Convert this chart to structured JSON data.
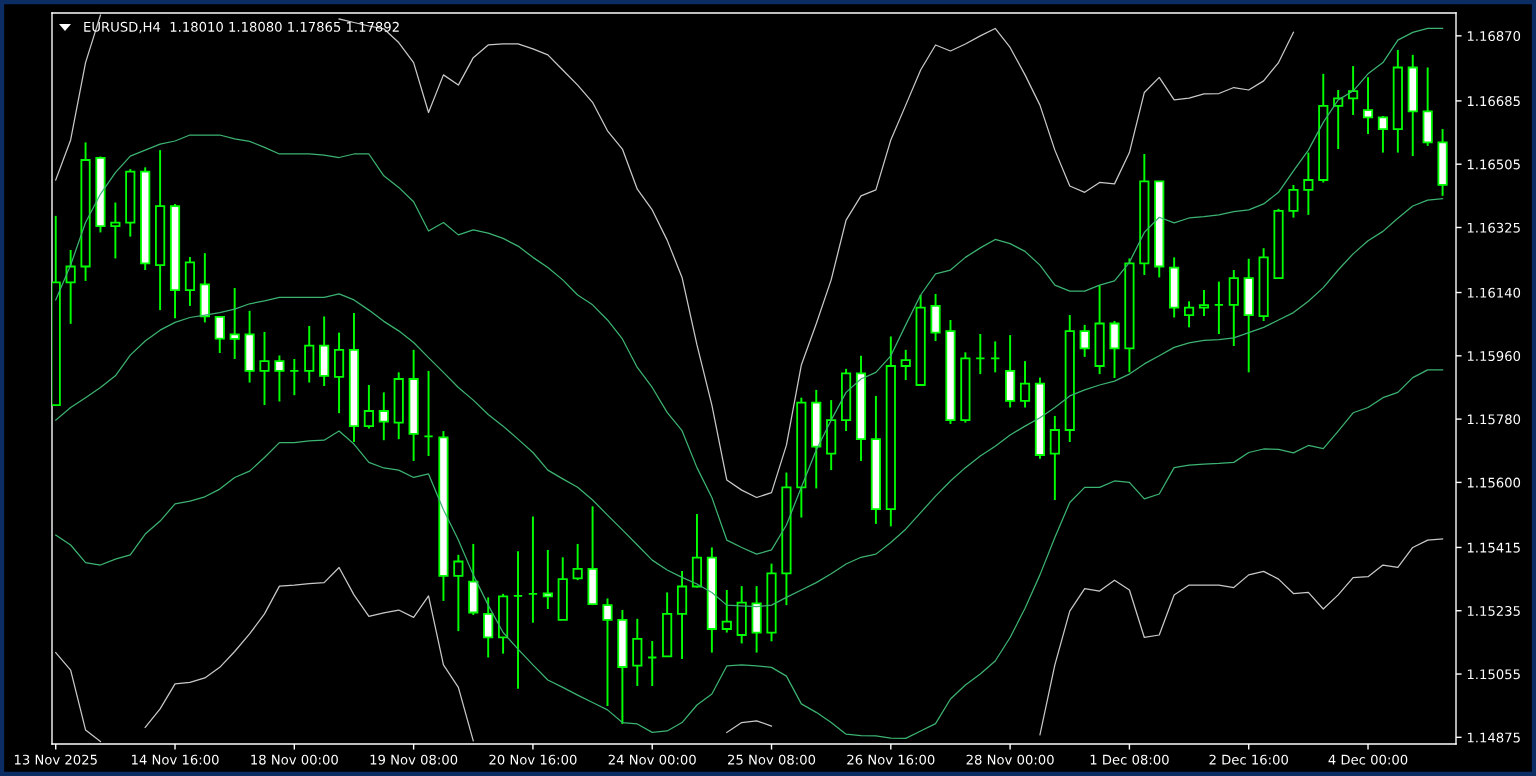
{
  "chart_data": {
    "type": "candlestick",
    "title": "EURUSD,H4  1.18010 1.18080 1.17865 1.17892",
    "categories": [
      "13 Nov 2025",
      null,
      null,
      null,
      null,
      null,
      null,
      null,
      "14 Nov 16:00",
      null,
      null,
      null,
      null,
      null,
      null,
      null,
      "18 Nov 00:00",
      null,
      null,
      null,
      null,
      null,
      null,
      null,
      "19 Nov 08:00",
      null,
      null,
      null,
      null,
      null,
      null,
      null,
      "20 Nov 16:00",
      null,
      null,
      null,
      null,
      null,
      null,
      null,
      "24 Nov 00:00",
      null,
      null,
      null,
      null,
      null,
      null,
      null,
      "25 Nov 08:00",
      null,
      null,
      null,
      null,
      null,
      null,
      null,
      "26 Nov 16:00",
      null,
      null,
      null,
      null,
      null,
      null,
      null,
      "28 Nov 00:00",
      null,
      null,
      null,
      null,
      null,
      null,
      null,
      "1 Dec 08:00",
      null,
      null,
      null,
      null,
      null,
      null,
      null,
      "2 Dec 16:00",
      null,
      null,
      null,
      null,
      null,
      null,
      null,
      "4 Dec 00:00",
      null,
      null,
      null,
      null,
      null
    ],
    "color": "#00ff00",
    "ohlc": [
      [
        1.1582,
        1.16358,
        1.1582,
        1.16169
      ],
      [
        1.16169,
        1.16261,
        1.16051,
        1.16214
      ],
      [
        1.16214,
        1.16567,
        1.16173,
        1.16517
      ],
      [
        1.16523,
        1.16527,
        1.16311,
        1.16329
      ],
      [
        1.16329,
        1.16396,
        1.16237,
        1.16339
      ],
      [
        1.16339,
        1.16491,
        1.16299,
        1.16484
      ],
      [
        1.16484,
        1.16496,
        1.16204,
        1.16223
      ],
      [
        1.16218,
        1.16545,
        1.1609,
        1.16386
      ],
      [
        1.16386,
        1.16392,
        1.16067,
        1.16147
      ],
      [
        1.16147,
        1.16241,
        1.16102,
        1.16226
      ],
      [
        1.16163,
        1.16252,
        1.16055,
        1.16072
      ],
      [
        1.16071,
        1.16073,
        1.15968,
        1.16009
      ],
      [
        1.16021,
        1.16153,
        1.15951,
        1.16008
      ],
      [
        1.16021,
        1.16088,
        1.15884,
        1.15917
      ],
      [
        1.15917,
        1.16028,
        1.1582,
        1.15945
      ],
      [
        1.15945,
        1.15961,
        1.1583,
        1.15917
      ],
      [
        1.15917,
        1.15951,
        1.15848,
        1.15917
      ],
      [
        1.15917,
        1.16045,
        1.15884,
        1.15989
      ],
      [
        1.15989,
        1.16072,
        1.15874,
        1.15903
      ],
      [
        1.159,
        1.16026,
        1.15797,
        1.15977
      ],
      [
        1.15977,
        1.16082,
        1.15715,
        1.1576
      ],
      [
        1.1576,
        1.15877,
        1.15753,
        1.15803
      ],
      [
        1.15803,
        1.15856,
        1.1572,
        1.15773
      ],
      [
        1.1577,
        1.15913,
        1.15723,
        1.15894
      ],
      [
        1.15894,
        1.15977,
        1.15661,
        1.15738
      ],
      [
        1.15731,
        1.15917,
        1.15675,
        1.15731
      ],
      [
        1.15728,
        1.15746,
        1.15263,
        1.15334
      ],
      [
        1.15334,
        1.15394,
        1.15177,
        1.15375
      ],
      [
        1.15318,
        1.15425,
        1.15223,
        1.1523
      ],
      [
        1.15226,
        1.15273,
        1.15102,
        1.15159
      ],
      [
        1.15159,
        1.15283,
        1.15113,
        1.15276
      ],
      [
        1.15277,
        1.15404,
        1.15013,
        1.15277
      ],
      [
        1.15283,
        1.15503,
        1.15201,
        1.15283
      ],
      [
        1.15284,
        1.15408,
        1.1524,
        1.15276
      ],
      [
        1.15209,
        1.15387,
        1.15209,
        1.15325
      ],
      [
        1.15327,
        1.15425,
        1.15322,
        1.15354
      ],
      [
        1.15354,
        1.15532,
        1.15251,
        1.15254
      ],
      [
        1.15251,
        1.1527,
        1.14964,
        1.15209
      ],
      [
        1.15209,
        1.15237,
        1.14913,
        1.15075
      ],
      [
        1.15079,
        1.15212,
        1.15021,
        1.15155
      ],
      [
        1.15102,
        1.15149,
        1.15021,
        1.15102
      ],
      [
        1.15105,
        1.15287,
        1.15105,
        1.15226
      ],
      [
        1.15226,
        1.15348,
        1.15098,
        1.15304
      ],
      [
        1.15304,
        1.1551,
        1.15301,
        1.15386
      ],
      [
        1.15386,
        1.15415,
        1.15116,
        1.15183
      ],
      [
        1.15183,
        1.15294,
        1.15173,
        1.15204
      ],
      [
        1.15166,
        1.15305,
        1.15142,
        1.15258
      ],
      [
        1.15256,
        1.15305,
        1.15116,
        1.15173
      ],
      [
        1.15173,
        1.15369,
        1.15148,
        1.15341
      ],
      [
        1.15341,
        1.15628,
        1.15251,
        1.15586
      ],
      [
        1.15586,
        1.15841,
        1.155,
        1.15827
      ],
      [
        1.15827,
        1.15863,
        1.15583,
        1.15702
      ],
      [
        1.15682,
        1.15834,
        1.15635,
        1.15777
      ],
      [
        1.15777,
        1.15923,
        1.15746,
        1.1591
      ],
      [
        1.1591,
        1.1596,
        1.15661,
        1.15723
      ],
      [
        1.15723,
        1.15846,
        1.15482,
        1.15524
      ],
      [
        1.15524,
        1.16015,
        1.15475,
        1.15931
      ],
      [
        1.15931,
        1.15977,
        1.15891,
        1.15948
      ],
      [
        1.15877,
        1.16133,
        1.15874,
        1.16097
      ],
      [
        1.16102,
        1.16136,
        1.16002,
        1.16026
      ],
      [
        1.1603,
        1.16062,
        1.15766,
        1.15777
      ],
      [
        1.15777,
        1.1597,
        1.1577,
        1.15953
      ],
      [
        1.15953,
        1.16022,
        1.15908,
        1.15953
      ],
      [
        1.15953,
        1.16001,
        1.15913,
        1.15953
      ],
      [
        1.15917,
        1.16019,
        1.15813,
        1.15832
      ],
      [
        1.15832,
        1.15945,
        1.15813,
        1.15881
      ],
      [
        1.15881,
        1.15898,
        1.15667,
        1.15678
      ],
      [
        1.15682,
        1.15789,
        1.1555,
        1.15749
      ],
      [
        1.15749,
        1.16076,
        1.15715,
        1.1603
      ],
      [
        1.1603,
        1.16048,
        1.15957,
        1.15981
      ],
      [
        1.15931,
        1.16161,
        1.15908,
        1.16052
      ],
      [
        1.16052,
        1.16059,
        1.15897,
        1.15981
      ],
      [
        1.15981,
        1.16237,
        1.15913,
        1.16223
      ],
      [
        1.16223,
        1.16534,
        1.1619,
        1.16456
      ],
      [
        1.16456,
        1.16457,
        1.16183,
        1.16214
      ],
      [
        1.16211,
        1.1624,
        1.16069,
        1.16097
      ],
      [
        1.16076,
        1.16115,
        1.16041,
        1.16097
      ],
      [
        1.16097,
        1.16147,
        1.16073,
        1.16104
      ],
      [
        1.16105,
        1.16171,
        1.16022,
        1.16105
      ],
      [
        1.16105,
        1.16204,
        1.15988,
        1.16181
      ],
      [
        1.16181,
        1.16236,
        1.15913,
        1.16076
      ],
      [
        1.16073,
        1.16266,
        1.16059,
        1.1624
      ],
      [
        1.16181,
        1.16378,
        1.16179,
        1.16372
      ],
      [
        1.16372,
        1.16446,
        1.16353,
        1.16432
      ],
      [
        1.16432,
        1.16538,
        1.16361,
        1.1646
      ],
      [
        1.1646,
        1.16762,
        1.16453,
        1.16671
      ],
      [
        1.16671,
        1.16716,
        1.16548,
        1.16692
      ],
      [
        1.16692,
        1.16784,
        1.16645,
        1.16713
      ],
      [
        1.16659,
        1.16752,
        1.16591,
        1.16638
      ],
      [
        1.16638,
        1.16642,
        1.16538,
        1.16605
      ],
      [
        1.16605,
        1.1683,
        1.16538,
        1.1678
      ],
      [
        1.1678,
        1.16816,
        1.16528,
        1.16655
      ],
      [
        1.16655,
        1.1678,
        1.16557,
        1.16567
      ],
      [
        1.16567,
        1.16605,
        1.16415,
        1.16446
      ]
    ],
    "series": [
      {
        "type": "line",
        "color": "#c8c8c8",
        "values": [
          1.1646,
          1.16574,
          1.16794,
          1.16929,
          null,
          null,
          null,
          null,
          null,
          null,
          null,
          null,
          null,
          null,
          null,
          null,
          null,
          null,
          null,
          1.16918,
          1.16908,
          1.16898,
          1.1689,
          1.16851,
          1.16794,
          1.16652,
          1.16759,
          1.1673,
          1.16808,
          1.16844,
          1.16847,
          1.16847,
          1.16833,
          1.16816,
          1.16773,
          1.1673,
          1.16681,
          1.166,
          1.16548,
          1.16434,
          1.16375,
          1.16289,
          1.16183,
          1.15991,
          1.1582,
          1.15607,
          1.15578,
          1.15557,
          1.15571,
          1.15706,
          1.15934,
          1.16051,
          1.16176,
          1.16346,
          1.16415,
          1.16432,
          1.16574,
          1.16673,
          1.16773,
          1.16844,
          1.16827,
          1.16847,
          1.1687,
          1.16891,
          1.16837,
          1.16759,
          1.16673,
          1.16545,
          1.16443,
          1.16425,
          1.16453,
          1.16449,
          1.16538,
          1.16709,
          1.16752,
          1.16688,
          1.16693,
          1.16705,
          1.16706,
          1.16723,
          1.16716,
          1.16742,
          1.16794,
          1.1688,
          null,
          null,
          null,
          null,
          null,
          null,
          null,
          null,
          null,
          null
        ]
      },
      {
        "type": "line",
        "color": "#3cb371",
        "values": [
          1.16119,
          1.16218,
          1.16339,
          1.1642,
          1.16481,
          1.16528,
          1.16545,
          1.16562,
          1.16571,
          1.16588,
          1.16588,
          1.16588,
          1.16577,
          1.1657,
          1.16553,
          1.16534,
          1.16534,
          1.16534,
          1.16531,
          1.16524,
          1.16534,
          1.16534,
          1.16472,
          1.16439,
          1.16398,
          1.16315,
          1.16339,
          1.16304,
          1.16318,
          1.16309,
          1.16294,
          1.16272,
          1.1624,
          1.16211,
          1.16176,
          1.16133,
          1.16105,
          1.16062,
          1.16008,
          1.15927,
          1.1587,
          1.15799,
          1.15747,
          1.15642,
          1.15557,
          1.15436,
          1.15415,
          1.15396,
          1.15408,
          1.15479,
          1.15586,
          1.15692,
          1.15777,
          1.15856,
          1.15894,
          1.15913,
          1.1596,
          1.16048,
          1.16133,
          1.16193,
          1.16204,
          1.1624,
          1.16267,
          1.16291,
          1.16279,
          1.16257,
          1.16218,
          1.16161,
          1.16144,
          1.16144,
          1.16161,
          1.16173,
          1.16226,
          1.16311,
          1.16354,
          1.16338,
          1.16352,
          1.16356,
          1.16361,
          1.1637,
          1.16375,
          1.16392,
          1.16425,
          1.16486,
          1.16545,
          1.16624,
          1.16688,
          1.16713,
          1.16762,
          1.16794,
          1.16858,
          1.1688,
          1.16891,
          1.16891
        ]
      },
      {
        "type": "line",
        "color": "#3cb371",
        "values": [
          1.15777,
          1.15813,
          1.15841,
          1.1587,
          1.15903,
          1.15962,
          1.16002,
          1.16033,
          1.16055,
          1.16069,
          1.16076,
          1.16083,
          1.16093,
          1.16108,
          1.16116,
          1.16126,
          1.16126,
          1.16126,
          1.16126,
          1.16136,
          1.16119,
          1.1609,
          1.16058,
          1.16031,
          1.15998,
          1.15955,
          1.15913,
          1.1587,
          1.15834,
          1.15793,
          1.1576,
          1.15723,
          1.15685,
          1.15635,
          1.1561,
          1.15586,
          1.1555,
          1.15507,
          1.15465,
          1.15422,
          1.15379,
          1.15351,
          1.1533,
          1.15311,
          1.15287,
          1.15251,
          1.15249,
          1.15247,
          1.15251,
          1.15273,
          1.15294,
          1.15315,
          1.1534,
          1.15368,
          1.15387,
          1.15396,
          1.15429,
          1.15467,
          1.15514,
          1.15561,
          1.15604,
          1.15642,
          1.15675,
          1.15703,
          1.15735,
          1.1576,
          1.15784,
          1.15813,
          1.15846,
          1.15863,
          1.15877,
          1.15888,
          1.15908,
          1.15937,
          1.1596,
          1.15984,
          1.15997,
          1.16004,
          1.16006,
          1.16011,
          1.16026,
          1.16041,
          1.16062,
          1.16083,
          1.16115,
          1.16154,
          1.16204,
          1.1625,
          1.16287,
          1.16314,
          1.16351,
          1.16386,
          1.16403,
          1.16407
        ]
      },
      {
        "type": "line",
        "color": "#3cb371",
        "values": [
          1.1545,
          1.15422,
          1.15372,
          1.15365,
          1.15382,
          1.15394,
          1.15453,
          1.1549,
          1.15539,
          1.15547,
          1.15559,
          1.15581,
          1.15614,
          1.15632,
          1.15671,
          1.15713,
          1.15713,
          1.15718,
          1.1572,
          1.15746,
          1.15709,
          1.15657,
          1.15641,
          1.15635,
          1.15614,
          1.15624,
          1.15522,
          1.15436,
          1.15337,
          1.15251,
          1.15173,
          1.15126,
          1.15081,
          1.15038,
          1.15017,
          1.14995,
          1.14974,
          1.14953,
          1.14917,
          1.14913,
          1.14889,
          1.14893,
          1.14917,
          1.14967,
          1.14998,
          1.15078,
          1.15081,
          1.15078,
          1.15074,
          1.15049,
          1.1497,
          1.14946,
          1.14917,
          1.14884,
          1.1488,
          1.14879,
          1.14873,
          1.14872,
          1.14893,
          1.14914,
          1.14984,
          1.15024,
          1.15055,
          1.15092,
          1.15159,
          1.15242,
          1.15337,
          1.15443,
          1.15543,
          1.15586,
          1.15586,
          1.15604,
          1.156,
          1.15553,
          1.15567,
          1.15642,
          1.15649,
          1.15652,
          1.15654,
          1.15657,
          1.15685,
          1.15695,
          1.15694,
          1.15684,
          1.15705,
          1.15696,
          1.15746,
          1.15798,
          1.15813,
          1.15841,
          1.15856,
          1.15898,
          1.1592,
          1.1592
        ]
      },
      {
        "type": "line",
        "color": "#c8c8c8",
        "values": [
          1.15116,
          1.15066,
          1.14896,
          1.14863,
          null,
          null,
          1.14903,
          1.14956,
          1.15027,
          1.15031,
          1.15044,
          1.15074,
          1.15119,
          1.15169,
          1.15226,
          1.15305,
          1.15308,
          1.15312,
          1.15315,
          1.15358,
          1.1528,
          1.15219,
          1.15229,
          1.15237,
          1.15216,
          1.15277,
          1.15081,
          1.15017,
          1.14865,
          null,
          null,
          null,
          null,
          null,
          null,
          null,
          null,
          null,
          null,
          null,
          null,
          null,
          null,
          null,
          null,
          1.14889,
          1.14917,
          1.14922,
          1.14907,
          null,
          null,
          null,
          null,
          null,
          null,
          null,
          null,
          null,
          null,
          null,
          null,
          null,
          null,
          null,
          null,
          null,
          1.14882,
          1.15081,
          1.15234,
          1.15298,
          1.15291,
          1.15322,
          1.15294,
          1.15159,
          1.15166,
          1.1528,
          1.15308,
          1.15308,
          1.15308,
          1.15301,
          1.15337,
          1.15347,
          1.15325,
          1.15284,
          1.15287,
          1.1524,
          1.1528,
          1.15329,
          1.15332,
          1.15365,
          1.15358,
          1.15415,
          1.15436,
          1.15439
        ]
      }
    ],
    "ylim": [
      1.14856,
      1.16935
    ],
    "yticks": [
      {
        "value": 1.1687,
        "label": "1.16870"
      },
      1.16685,
      1.16505,
      1.16325,
      {
        "value": 1.1614,
        "label": "1.16140"
      },
      {
        "value": 1.1596,
        "label": "1.15960"
      },
      {
        "value": 1.1578,
        "label": "1.15780"
      },
      {
        "value": 1.156,
        "label": "1.15600"
      },
      1.15415,
      1.15235,
      1.15055,
      1.14875
    ]
  }
}
